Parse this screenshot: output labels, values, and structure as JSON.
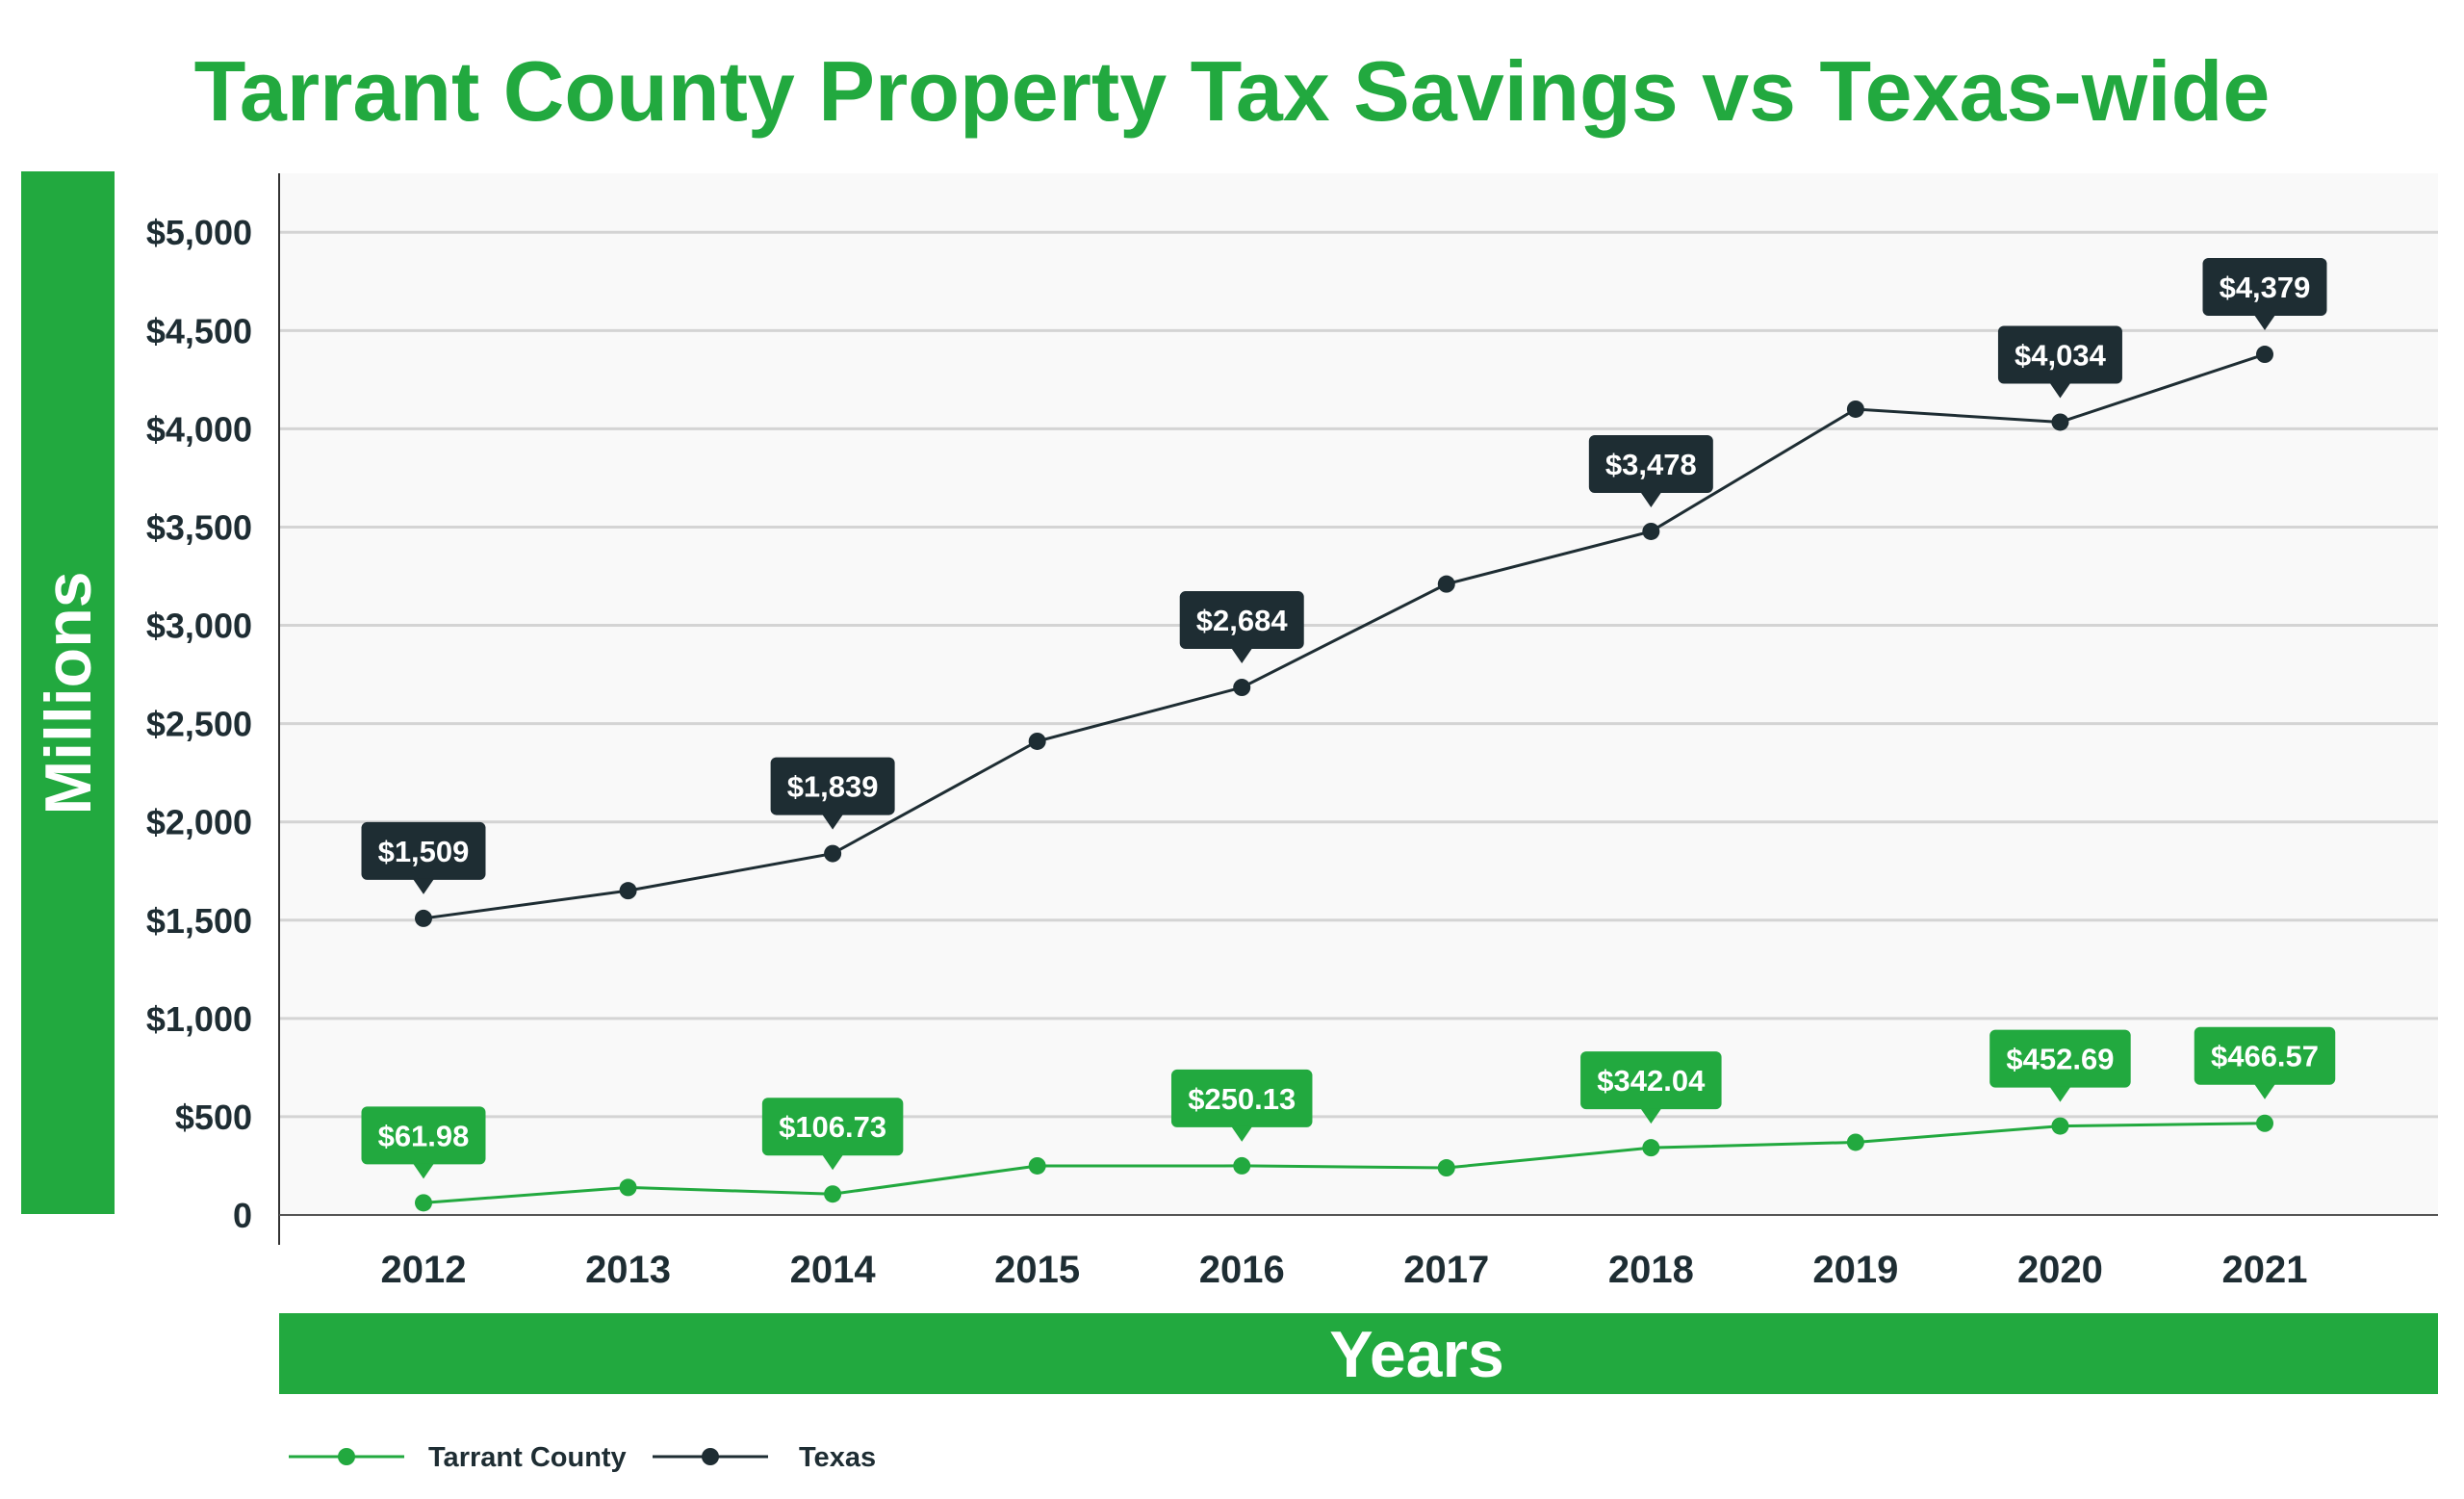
{
  "chart_data": {
    "type": "line",
    "title": "Tarrant County Property Tax Savings vs Texas-wide",
    "xlabel": "Years",
    "ylabel": "Millions",
    "x": [
      "2012",
      "2013",
      "2014",
      "2015",
      "2016",
      "2017",
      "2018",
      "2019",
      "2020",
      "2021"
    ],
    "y_ticks": [
      "0",
      "$500",
      "$1,000",
      "$1,500",
      "$2,000",
      "$2,500",
      "$3,000",
      "$3,500",
      "$4,000",
      "$4,500",
      "$5,000"
    ],
    "ylim": [
      0,
      5300
    ],
    "grid": true,
    "legend_position": "bottom-left",
    "series": [
      {
        "name": "Tarrant County",
        "color": "#22a93f",
        "values": [
          61.98,
          140,
          106.73,
          250,
          250.13,
          240,
          342.04,
          370,
          452.69,
          466.57
        ],
        "labels": [
          "$61.98",
          null,
          "$106.73",
          null,
          "$250.13",
          null,
          "$342.04",
          null,
          "$452.69",
          "$466.57"
        ]
      },
      {
        "name": "Texas",
        "color": "#1e2d33",
        "values": [
          1509,
          1650,
          1839,
          2410,
          2684,
          3210,
          3478,
          4100,
          4034,
          4379
        ],
        "labels": [
          "$1,509",
          null,
          "$1,839",
          null,
          "$2,684",
          null,
          "$3,478",
          null,
          "$4,034",
          "$4,379"
        ]
      }
    ]
  }
}
